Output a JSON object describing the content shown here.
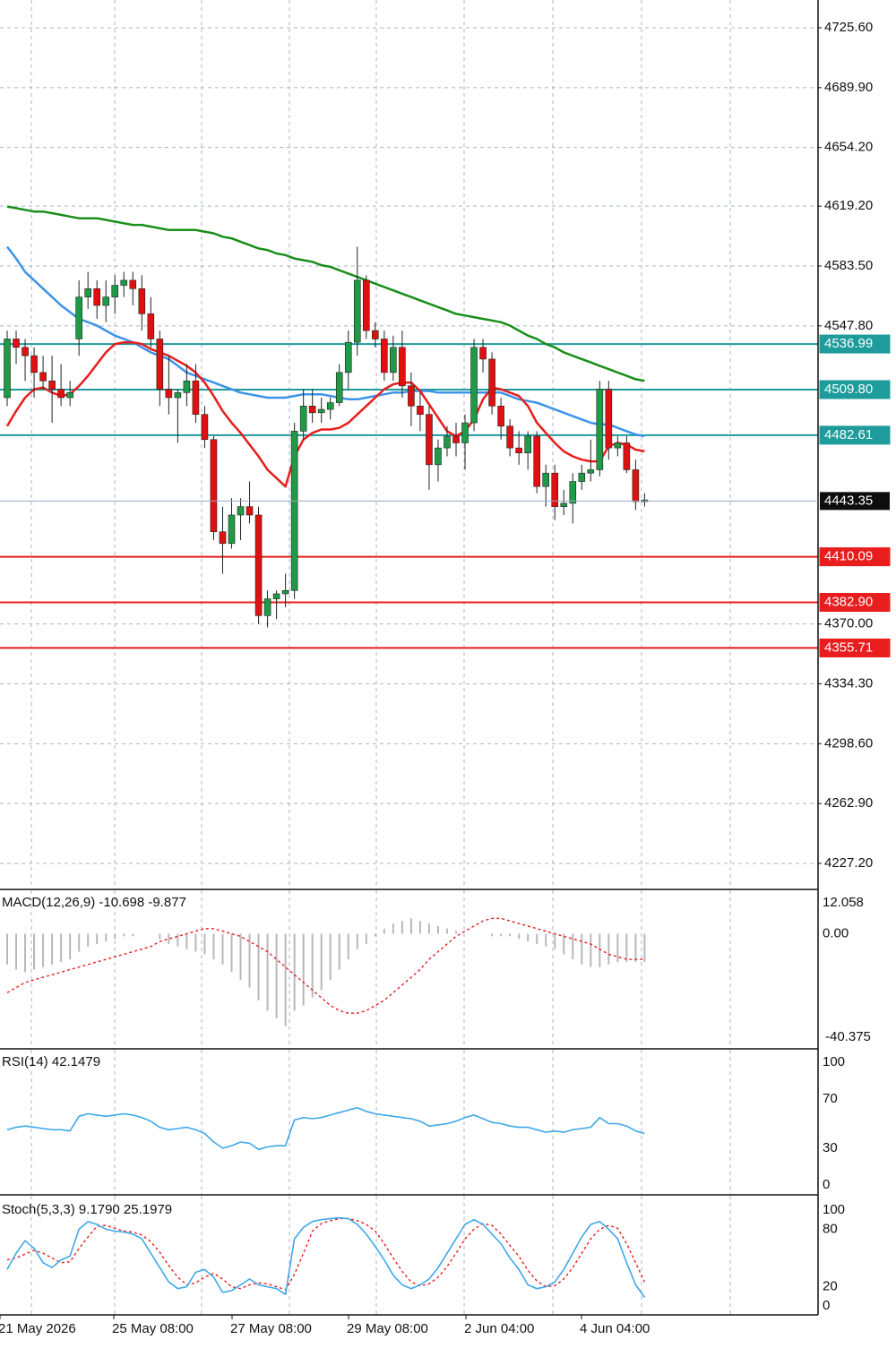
{
  "chart_data": {
    "type": "candlestick",
    "x_labels": [
      "21 May 2026",
      "25 May 2026 08:00",
      "27 May 2026 08:00",
      "29 May 2026 08:00",
      "2 Jun 2026 04:00",
      "4 Jun 2026 04:00"
    ],
    "price_panel": {
      "y_ticks": [
        4725.6,
        4689.9,
        4654.2,
        4619.2,
        4583.5,
        4547.8,
        4370.0,
        4334.3,
        4298.6,
        4262.9,
        4227.2
      ],
      "current_price": 4443.35,
      "resistance_levels": [
        4536.99,
        4509.8,
        4482.61
      ],
      "support_levels": [
        4410.09,
        4382.9,
        4355.71
      ],
      "candles": [
        {
          "o": 4505,
          "h": 4545,
          "l": 4500,
          "c": 4540
        },
        {
          "o": 4540,
          "h": 4545,
          "l": 4525,
          "c": 4535
        },
        {
          "o": 4535,
          "h": 4540,
          "l": 4515,
          "c": 4530
        },
        {
          "o": 4530,
          "h": 4535,
          "l": 4505,
          "c": 4520
        },
        {
          "o": 4520,
          "h": 4530,
          "l": 4510,
          "c": 4515
        },
        {
          "o": 4515,
          "h": 4530,
          "l": 4490,
          "c": 4510
        },
        {
          "o": 4510,
          "h": 4525,
          "l": 4500,
          "c": 4505
        },
        {
          "o": 4505,
          "h": 4515,
          "l": 4500,
          "c": 4508
        },
        {
          "o": 4540,
          "h": 4575,
          "l": 4530,
          "c": 4565
        },
        {
          "o": 4565,
          "h": 4580,
          "l": 4558,
          "c": 4570
        },
        {
          "o": 4570,
          "h": 4575,
          "l": 4552,
          "c": 4560
        },
        {
          "o": 4560,
          "h": 4575,
          "l": 4550,
          "c": 4565
        },
        {
          "o": 4565,
          "h": 4578,
          "l": 4555,
          "c": 4572
        },
        {
          "o": 4572,
          "h": 4580,
          "l": 4565,
          "c": 4575
        },
        {
          "o": 4575,
          "h": 4580,
          "l": 4560,
          "c": 4570
        },
        {
          "o": 4570,
          "h": 4578,
          "l": 4545,
          "c": 4555
        },
        {
          "o": 4555,
          "h": 4565,
          "l": 4535,
          "c": 4540
        },
        {
          "o": 4540,
          "h": 4545,
          "l": 4500,
          "c": 4510
        },
        {
          "o": 4510,
          "h": 4530,
          "l": 4495,
          "c": 4505
        },
        {
          "o": 4505,
          "h": 4510,
          "l": 4478,
          "c": 4508
        },
        {
          "o": 4508,
          "h": 4525,
          "l": 4500,
          "c": 4515
        },
        {
          "o": 4515,
          "h": 4525,
          "l": 4490,
          "c": 4495
        },
        {
          "o": 4495,
          "h": 4500,
          "l": 4475,
          "c": 4480
        },
        {
          "o": 4480,
          "h": 4482,
          "l": 4420,
          "c": 4425
        },
        {
          "o": 4425,
          "h": 4440,
          "l": 4400,
          "c": 4418
        },
        {
          "o": 4418,
          "h": 4445,
          "l": 4415,
          "c": 4435
        },
        {
          "o": 4435,
          "h": 4445,
          "l": 4420,
          "c": 4440
        },
        {
          "o": 4440,
          "h": 4455,
          "l": 4430,
          "c": 4435
        },
        {
          "o": 4435,
          "h": 4440,
          "l": 4370,
          "c": 4375
        },
        {
          "o": 4375,
          "h": 4390,
          "l": 4368,
          "c": 4385
        },
        {
          "o": 4385,
          "h": 4390,
          "l": 4373,
          "c": 4388
        },
        {
          "o": 4388,
          "h": 4400,
          "l": 4380,
          "c": 4390
        },
        {
          "o": 4390,
          "h": 4490,
          "l": 4385,
          "c": 4485
        },
        {
          "o": 4485,
          "h": 4510,
          "l": 4480,
          "c": 4500
        },
        {
          "o": 4500,
          "h": 4510,
          "l": 4490,
          "c": 4496
        },
        {
          "o": 4496,
          "h": 4505,
          "l": 4490,
          "c": 4498
        },
        {
          "o": 4498,
          "h": 4505,
          "l": 4492,
          "c": 4502
        },
        {
          "o": 4502,
          "h": 4525,
          "l": 4500,
          "c": 4520
        },
        {
          "o": 4520,
          "h": 4545,
          "l": 4510,
          "c": 4538
        },
        {
          "o": 4538,
          "h": 4595,
          "l": 4530,
          "c": 4575
        },
        {
          "o": 4575,
          "h": 4578,
          "l": 4540,
          "c": 4545
        },
        {
          "o": 4545,
          "h": 4550,
          "l": 4535,
          "c": 4540
        },
        {
          "o": 4540,
          "h": 4545,
          "l": 4515,
          "c": 4520
        },
        {
          "o": 4520,
          "h": 4542,
          "l": 4515,
          "c": 4535
        },
        {
          "o": 4535,
          "h": 4545,
          "l": 4505,
          "c": 4512
        },
        {
          "o": 4512,
          "h": 4520,
          "l": 4488,
          "c": 4500
        },
        {
          "o": 4500,
          "h": 4508,
          "l": 4485,
          "c": 4495
        },
        {
          "o": 4495,
          "h": 4500,
          "l": 4450,
          "c": 4465
        },
        {
          "o": 4465,
          "h": 4480,
          "l": 4455,
          "c": 4475
        },
        {
          "o": 4475,
          "h": 4488,
          "l": 4470,
          "c": 4482
        },
        {
          "o": 4482,
          "h": 4490,
          "l": 4470,
          "c": 4478
        },
        {
          "o": 4478,
          "h": 4495,
          "l": 4462,
          "c": 4490
        },
        {
          "o": 4490,
          "h": 4540,
          "l": 4485,
          "c": 4535
        },
        {
          "o": 4535,
          "h": 4540,
          "l": 4520,
          "c": 4528
        },
        {
          "o": 4528,
          "h": 4532,
          "l": 4495,
          "c": 4500
        },
        {
          "o": 4500,
          "h": 4505,
          "l": 4480,
          "c": 4488
        },
        {
          "o": 4488,
          "h": 4492,
          "l": 4470,
          "c": 4475
        },
        {
          "o": 4475,
          "h": 4485,
          "l": 4465,
          "c": 4472
        },
        {
          "o": 4472,
          "h": 4485,
          "l": 4462,
          "c": 4482
        },
        {
          "o": 4482,
          "h": 4485,
          "l": 4448,
          "c": 4452
        },
        {
          "o": 4452,
          "h": 4465,
          "l": 4440,
          "c": 4460
        },
        {
          "o": 4460,
          "h": 4465,
          "l": 4432,
          "c": 4440
        },
        {
          "o": 4440,
          "h": 4450,
          "l": 4435,
          "c": 4442
        },
        {
          "o": 4442,
          "h": 4460,
          "l": 4430,
          "c": 4455
        },
        {
          "o": 4455,
          "h": 4465,
          "l": 4450,
          "c": 4460
        },
        {
          "o": 4460,
          "h": 4480,
          "l": 4455,
          "c": 4462
        },
        {
          "o": 4462,
          "h": 4515,
          "l": 4458,
          "c": 4510
        },
        {
          "o": 4510,
          "h": 4515,
          "l": 4468,
          "c": 4475
        },
        {
          "o": 4475,
          "h": 4482,
          "l": 4470,
          "c": 4478
        },
        {
          "o": 4478,
          "h": 4482,
          "l": 4460,
          "c": 4462
        },
        {
          "o": 4462,
          "h": 4468,
          "l": 4438,
          "c": 4443
        },
        {
          "o": 4443,
          "h": 4448,
          "l": 4440,
          "c": 4444
        }
      ],
      "ma_fast": [
        4488,
        4497,
        4505,
        4510,
        4511,
        4508,
        4506,
        4507,
        4512,
        4518,
        4525,
        4532,
        4537,
        4538,
        4538,
        4537,
        4534,
        4532,
        4530,
        4527,
        4524,
        4520,
        4514,
        4506,
        4497,
        4490,
        4484,
        4477,
        4470,
        4462,
        4457,
        4452,
        4470,
        4480,
        4484,
        4486,
        4486,
        4487,
        4490,
        4495,
        4500,
        4505,
        4510,
        4513,
        4514,
        4514,
        4509,
        4501,
        4493,
        4485,
        4482,
        4485,
        4492,
        4504,
        4511,
        4510,
        4508,
        4506,
        4500,
        4490,
        4484,
        4478,
        4473,
        4470,
        4468,
        4467,
        4467,
        4476,
        4478,
        4477,
        4474,
        4473
      ],
      "ma_mid": [
        4595,
        4588,
        4580,
        4575,
        4570,
        4565,
        4560,
        4556,
        4552,
        4550,
        4548,
        4545,
        4542,
        4540,
        4538,
        4535,
        4532,
        4530,
        4528,
        4524,
        4520,
        4518,
        4516,
        4514,
        4512,
        4510,
        4508,
        4507,
        4506,
        4505,
        4505,
        4505,
        4506,
        4507,
        4507,
        4507,
        4506,
        4505,
        4504,
        4504,
        4505,
        4506,
        4507,
        4508,
        4508,
        4509,
        4509,
        4509,
        4508,
        4508,
        4508,
        4508,
        4508,
        4508,
        4508,
        4508,
        4506,
        4504,
        4503,
        4502,
        4500,
        4498,
        4496,
        4494,
        4492,
        4490,
        4489,
        4489,
        4487,
        4485,
        4483,
        4482
      ],
      "ma_slow": [
        4619,
        4618,
        4617,
        4616,
        4616,
        4615,
        4614,
        4613,
        4612,
        4612,
        4612,
        4611,
        4610,
        4609,
        4608,
        4608,
        4607,
        4606,
        4605,
        4605,
        4605,
        4605,
        4604,
        4603,
        4601,
        4600,
        4598,
        4596,
        4594,
        4593,
        4591,
        4590,
        4588,
        4587,
        4586,
        4584,
        4583,
        4581,
        4579,
        4577,
        4575,
        4573,
        4571,
        4569,
        4567,
        4565,
        4563,
        4561,
        4559,
        4557,
        4555,
        4554,
        4553,
        4552,
        4551,
        4550,
        4548,
        4545,
        4542,
        4540,
        4537,
        4535,
        4532,
        4530,
        4528,
        4526,
        4524,
        4522,
        4520,
        4518,
        4516,
        4515
      ]
    },
    "macd_panel": {
      "label": "MACD(12,26,9) -10.698 -9.877",
      "y_ticks": [
        "12.058",
        "0.00",
        "-40.375"
      ],
      "histogram": [
        -12,
        -14,
        -15,
        -14,
        -13,
        -12,
        -11,
        -10,
        -7,
        -5,
        -4,
        -3,
        -2,
        -1,
        -1,
        0,
        0,
        -2,
        -4,
        -5,
        -6,
        -7,
        -8,
        -10,
        -12,
        -15,
        -18,
        -21,
        -26,
        -30,
        -33,
        -36,
        -30,
        -28,
        -25,
        -22,
        -18,
        -14,
        -10,
        -6,
        -4,
        -1,
        2,
        4,
        5,
        6,
        5,
        4,
        3,
        2,
        1,
        0,
        0,
        0,
        -1,
        -1,
        -1,
        -2,
        -3,
        -4,
        -5,
        -6,
        -8,
        -10,
        -12,
        -13,
        -13,
        -12,
        -11,
        -11,
        -11,
        -11
      ],
      "signal": [
        -23,
        -21,
        -19,
        -18,
        -17,
        -16,
        -15,
        -14,
        -13,
        -12,
        -11,
        -10,
        -9,
        -8,
        -7,
        -6,
        -5,
        -3,
        -2,
        -1,
        0,
        1,
        2,
        2,
        1,
        0,
        -1,
        -3,
        -5,
        -7,
        -10,
        -13,
        -16,
        -19,
        -22,
        -25,
        -28,
        -30,
        -31,
        -31,
        -30,
        -28,
        -26,
        -23,
        -20,
        -17,
        -14,
        -10,
        -7,
        -4,
        -1,
        1,
        3,
        5,
        6,
        6,
        5,
        4,
        3,
        2,
        1,
        0,
        -1,
        -2,
        -3,
        -4,
        -6,
        -8,
        -9,
        -10,
        -10,
        -10
      ],
      "range": [
        -40.375,
        12.058
      ]
    },
    "rsi_panel": {
      "label": "RSI(14) 42.1479",
      "y_ticks": [
        "100",
        "70",
        "30",
        "0"
      ],
      "values": [
        45,
        47,
        48,
        47,
        46,
        45,
        45,
        44,
        56,
        58,
        57,
        56,
        57,
        58,
        57,
        55,
        52,
        47,
        45,
        46,
        47,
        45,
        42,
        35,
        30,
        32,
        35,
        34,
        29,
        31,
        32,
        32,
        53,
        55,
        54,
        55,
        57,
        59,
        61,
        63,
        60,
        58,
        57,
        56,
        55,
        54,
        52,
        48,
        49,
        50,
        52,
        55,
        57,
        54,
        51,
        50,
        48,
        47,
        47,
        45,
        43,
        44,
        43,
        45,
        46,
        47,
        55,
        50,
        50,
        48,
        44,
        42
      ],
      "range": [
        0,
        100
      ]
    },
    "stoch_panel": {
      "label": "Stoch(5,3,3) 9.1790 25.1979",
      "y_ticks": [
        "100",
        "80",
        "20",
        "0"
      ],
      "k": [
        38,
        55,
        68,
        60,
        45,
        40,
        48,
        52,
        80,
        88,
        85,
        80,
        78,
        77,
        75,
        70,
        55,
        40,
        25,
        18,
        20,
        35,
        38,
        30,
        14,
        16,
        22,
        28,
        22,
        20,
        18,
        12,
        70,
        82,
        88,
        90,
        91,
        92,
        91,
        85,
        75,
        62,
        48,
        32,
        22,
        18,
        22,
        28,
        40,
        55,
        70,
        85,
        90,
        85,
        75,
        65,
        50,
        38,
        22,
        18,
        20,
        25,
        38,
        55,
        72,
        85,
        88,
        80,
        70,
        45,
        22,
        9
      ],
      "d": [
        48,
        50,
        54,
        58,
        55,
        50,
        45,
        46,
        60,
        72,
        83,
        84,
        81,
        78,
        77,
        74,
        67,
        56,
        42,
        30,
        22,
        24,
        30,
        34,
        28,
        20,
        18,
        22,
        24,
        23,
        20,
        17,
        33,
        55,
        78,
        86,
        89,
        91,
        91,
        89,
        85,
        78,
        65,
        50,
        36,
        25,
        21,
        23,
        30,
        41,
        55,
        70,
        80,
        86,
        84,
        75,
        63,
        52,
        37,
        26,
        20,
        21,
        28,
        40,
        55,
        70,
        80,
        84,
        81,
        65,
        45,
        25
      ],
      "range": [
        0,
        100
      ]
    },
    "colors": {
      "bull": "#1f9a47",
      "bear": "#e01010",
      "ma_fast": "#e81d1d",
      "ma_mid": "#3c93e8",
      "ma_slow": "#1a8e1a",
      "resistance": "#1e9b9b",
      "support": "#e81d1d",
      "grid": "#a8b4c8",
      "macd_hist": "#b8b8b8",
      "signal": "#e81d1d",
      "rsi": "#3ea8ea",
      "stoch_k": "#3ea8ea",
      "stoch_d": "#e81d1d"
    }
  }
}
